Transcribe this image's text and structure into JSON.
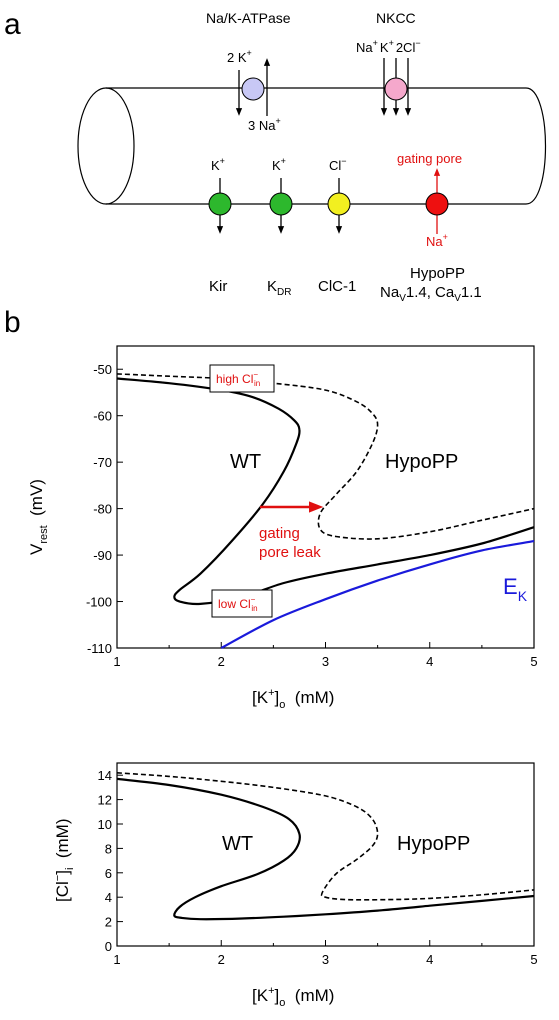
{
  "panel_a": {
    "label": "a",
    "transporters_top": [
      {
        "name": "Na/K-ATPase",
        "labels": [
          "2 K",
          "+",
          "3 Na",
          "+"
        ],
        "color": "#c8c8f5"
      },
      {
        "name": "NKCC",
        "labels": [
          "Na",
          "+",
          "K",
          "+",
          "2Cl",
          "−"
        ],
        "color": "#f5a8cc"
      }
    ],
    "channels": [
      {
        "name": "Kir",
        "ion": "K",
        "charge": "+",
        "color": "#2db82d"
      },
      {
        "name": "K",
        "sub": "DR",
        "ion": "K",
        "charge": "+",
        "color": "#2db82d"
      },
      {
        "name": "ClC-1",
        "ion": "Cl",
        "charge": "−",
        "color": "#f2ef20"
      },
      {
        "name": "HypoPP",
        "ion": "Na",
        "charge": "+",
        "color": "#ee1010"
      }
    ],
    "gating_pore_label": "gating pore",
    "hypopp_subline": {
      "na": "Na",
      "na_sub": "V",
      "na_rest": "1.4, ",
      "ca": "Ca",
      "ca_sub": "V",
      "ca_rest": "1.1"
    }
  },
  "chart_data": [
    {
      "type": "line",
      "panel_label": "b",
      "xlabel": {
        "main": "[K",
        "sup": "+",
        "after": "]",
        "sub": "o",
        "tail": "  (mM)"
      },
      "ylabel": {
        "main": "V",
        "sub": "rest",
        "tail": "  (mV)"
      },
      "xlim": [
        1,
        5
      ],
      "ylim": [
        -110,
        -45
      ],
      "xticks": [
        "1",
        "2",
        "3",
        "4",
        "5"
      ],
      "yticks": [
        "-50",
        "-60",
        "-70",
        "-80",
        "-90",
        "-100",
        "-110"
      ],
      "series": [
        {
          "label": "WT",
          "style": "solid",
          "color": "#000000",
          "x": [
            1.0,
            1.5,
            2.0,
            2.3,
            2.55,
            2.7,
            2.75,
            2.72,
            2.6,
            2.4,
            2.1,
            1.8,
            1.6,
            1.55,
            1.6,
            1.8,
            2.2,
            2.6,
            3.0,
            3.5,
            4.0,
            4.5,
            5.0
          ],
          "y": [
            -52,
            -53,
            -54.5,
            -56,
            -58.5,
            -61,
            -63,
            -66,
            -72,
            -79,
            -87,
            -94,
            -97.5,
            -99,
            -100,
            -100.5,
            -99,
            -96,
            -94,
            -92,
            -90,
            -87.5,
            -84
          ]
        },
        {
          "label": "HypoPP",
          "style": "dashed",
          "color": "#000000",
          "x": [
            1.0,
            1.5,
            2.0,
            2.5,
            3.0,
            3.3,
            3.45,
            3.5,
            3.45,
            3.3,
            3.1,
            2.95,
            2.95,
            3.1,
            3.5,
            4.0,
            4.5,
            5.0
          ],
          "y": [
            -51,
            -51.5,
            -52,
            -53,
            -54.5,
            -57,
            -59.5,
            -62,
            -66,
            -72,
            -77,
            -81,
            -84.5,
            -86,
            -86.5,
            -85,
            -82.5,
            -80
          ]
        },
        {
          "label": "E",
          "label_sub": "K",
          "style": "solid",
          "color": "#1a1adb",
          "x": [
            2.0,
            2.5,
            3.0,
            3.5,
            4.0,
            4.5,
            5.0
          ],
          "y": [
            -110,
            -104,
            -99.5,
            -95.5,
            -92,
            -89,
            -87
          ]
        }
      ],
      "annotations": {
        "wt_label": "WT",
        "hypopp_label": "HypoPP",
        "arrow_text_1": "gating",
        "arrow_text_2": "pore leak",
        "high_cl": {
          "main": "high Cl",
          "sup": "−",
          "sub": "in"
        },
        "low_cl": {
          "main": "low Cl",
          "sup": "−",
          "sub": "in"
        }
      }
    },
    {
      "type": "line",
      "xlabel": {
        "main": "[K",
        "sup": "+",
        "after": "]",
        "sub": "o",
        "tail": "  (mM)"
      },
      "ylabel": {
        "main": "[Cl",
        "sup": "−",
        "after": "]",
        "sub": "i",
        "tail": "  (mM)"
      },
      "xlim": [
        1,
        5
      ],
      "ylim": [
        0,
        15
      ],
      "xticks": [
        "1",
        "2",
        "3",
        "4",
        "5"
      ],
      "yticks": [
        "0",
        "2",
        "4",
        "6",
        "8",
        "10",
        "12",
        "14"
      ],
      "series": [
        {
          "label": "WT",
          "style": "solid",
          "color": "#000000",
          "x": [
            1.0,
            1.5,
            2.0,
            2.4,
            2.65,
            2.75,
            2.72,
            2.6,
            2.35,
            2.0,
            1.75,
            1.6,
            1.55,
            1.62,
            1.8,
            2.2,
            2.6,
            3.0,
            3.5,
            4.0,
            4.5,
            5.0
          ],
          "y": [
            13.7,
            13.2,
            12.4,
            11.4,
            10.4,
            9.2,
            8.0,
            7.0,
            5.9,
            4.9,
            4.0,
            3.2,
            2.5,
            2.3,
            2.2,
            2.25,
            2.4,
            2.6,
            2.9,
            3.3,
            3.7,
            4.1
          ]
        },
        {
          "label": "HypoPP",
          "style": "dashed",
          "color": "#000000",
          "x": [
            1.0,
            1.5,
            2.0,
            2.5,
            3.0,
            3.3,
            3.45,
            3.5,
            3.45,
            3.3,
            3.1,
            2.97,
            3.0,
            3.2,
            3.6,
            4.0,
            4.5,
            5.0
          ],
          "y": [
            14.2,
            13.9,
            13.5,
            13.0,
            12.3,
            11.4,
            10.4,
            9.2,
            8.2,
            7.1,
            5.9,
            4.4,
            4.0,
            3.8,
            3.8,
            3.9,
            4.2,
            4.6
          ]
        }
      ],
      "annotations": {
        "wt_label": "WT",
        "hypopp_label": "HypoPP"
      }
    }
  ]
}
